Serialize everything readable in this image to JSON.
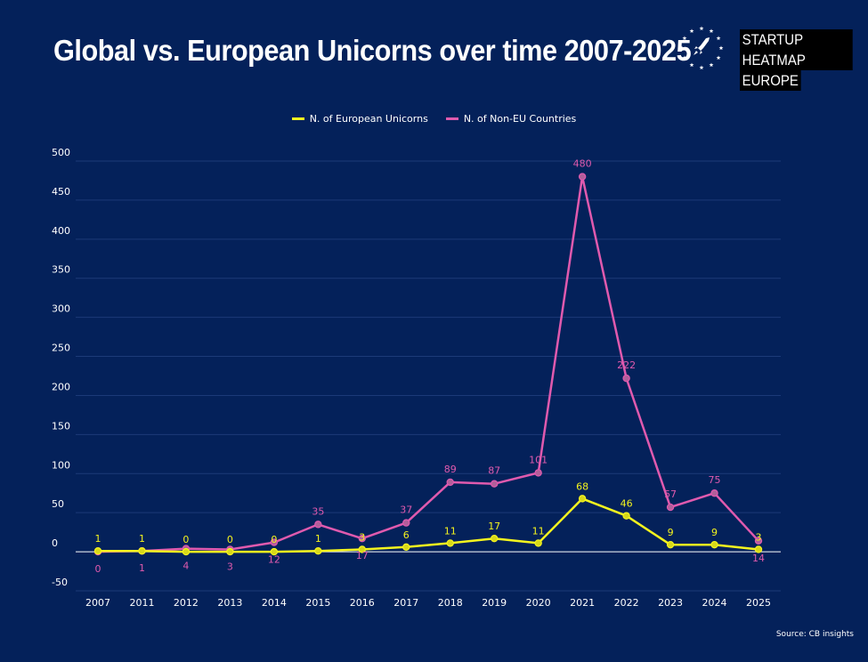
{
  "header": {
    "title": "Global vs. European Unicorns over time 2007-2025",
    "brand_line1": "STARTUP HEATMAP",
    "brand_line2": "EUROPE",
    "logo_icon": "rocket-stars-icon"
  },
  "source": "Source: CB insights",
  "colors": {
    "background": "#04215a",
    "european": "#f4f41e",
    "non_eu": "#e05aae",
    "grid": "#1c3a78"
  },
  "chart_data": {
    "type": "line",
    "title": "Global vs. European Unicorns over time 2007-2025",
    "categories": [
      "2007",
      "2011",
      "2012",
      "2013",
      "2014",
      "2015",
      "2016",
      "2017",
      "2018",
      "2019",
      "2020",
      "2021",
      "2022",
      "2023",
      "2024",
      "2025"
    ],
    "series": [
      {
        "name": "N. of European Unicorns",
        "values": [
          1,
          1,
          0,
          0,
          0,
          1,
          3,
          6,
          11,
          17,
          11,
          68,
          46,
          9,
          9,
          3
        ]
      },
      {
        "name": "N. of Non-EU Countries",
        "values": [
          0,
          1,
          4,
          3,
          12,
          35,
          17,
          37,
          89,
          87,
          101,
          480,
          222,
          57,
          75,
          14
        ]
      }
    ],
    "ylim": [
      -50,
      500
    ],
    "yticks": [
      -50,
      0,
      50,
      100,
      150,
      200,
      250,
      300,
      350,
      400,
      450,
      500
    ],
    "grid": true,
    "legend": "top-center"
  }
}
